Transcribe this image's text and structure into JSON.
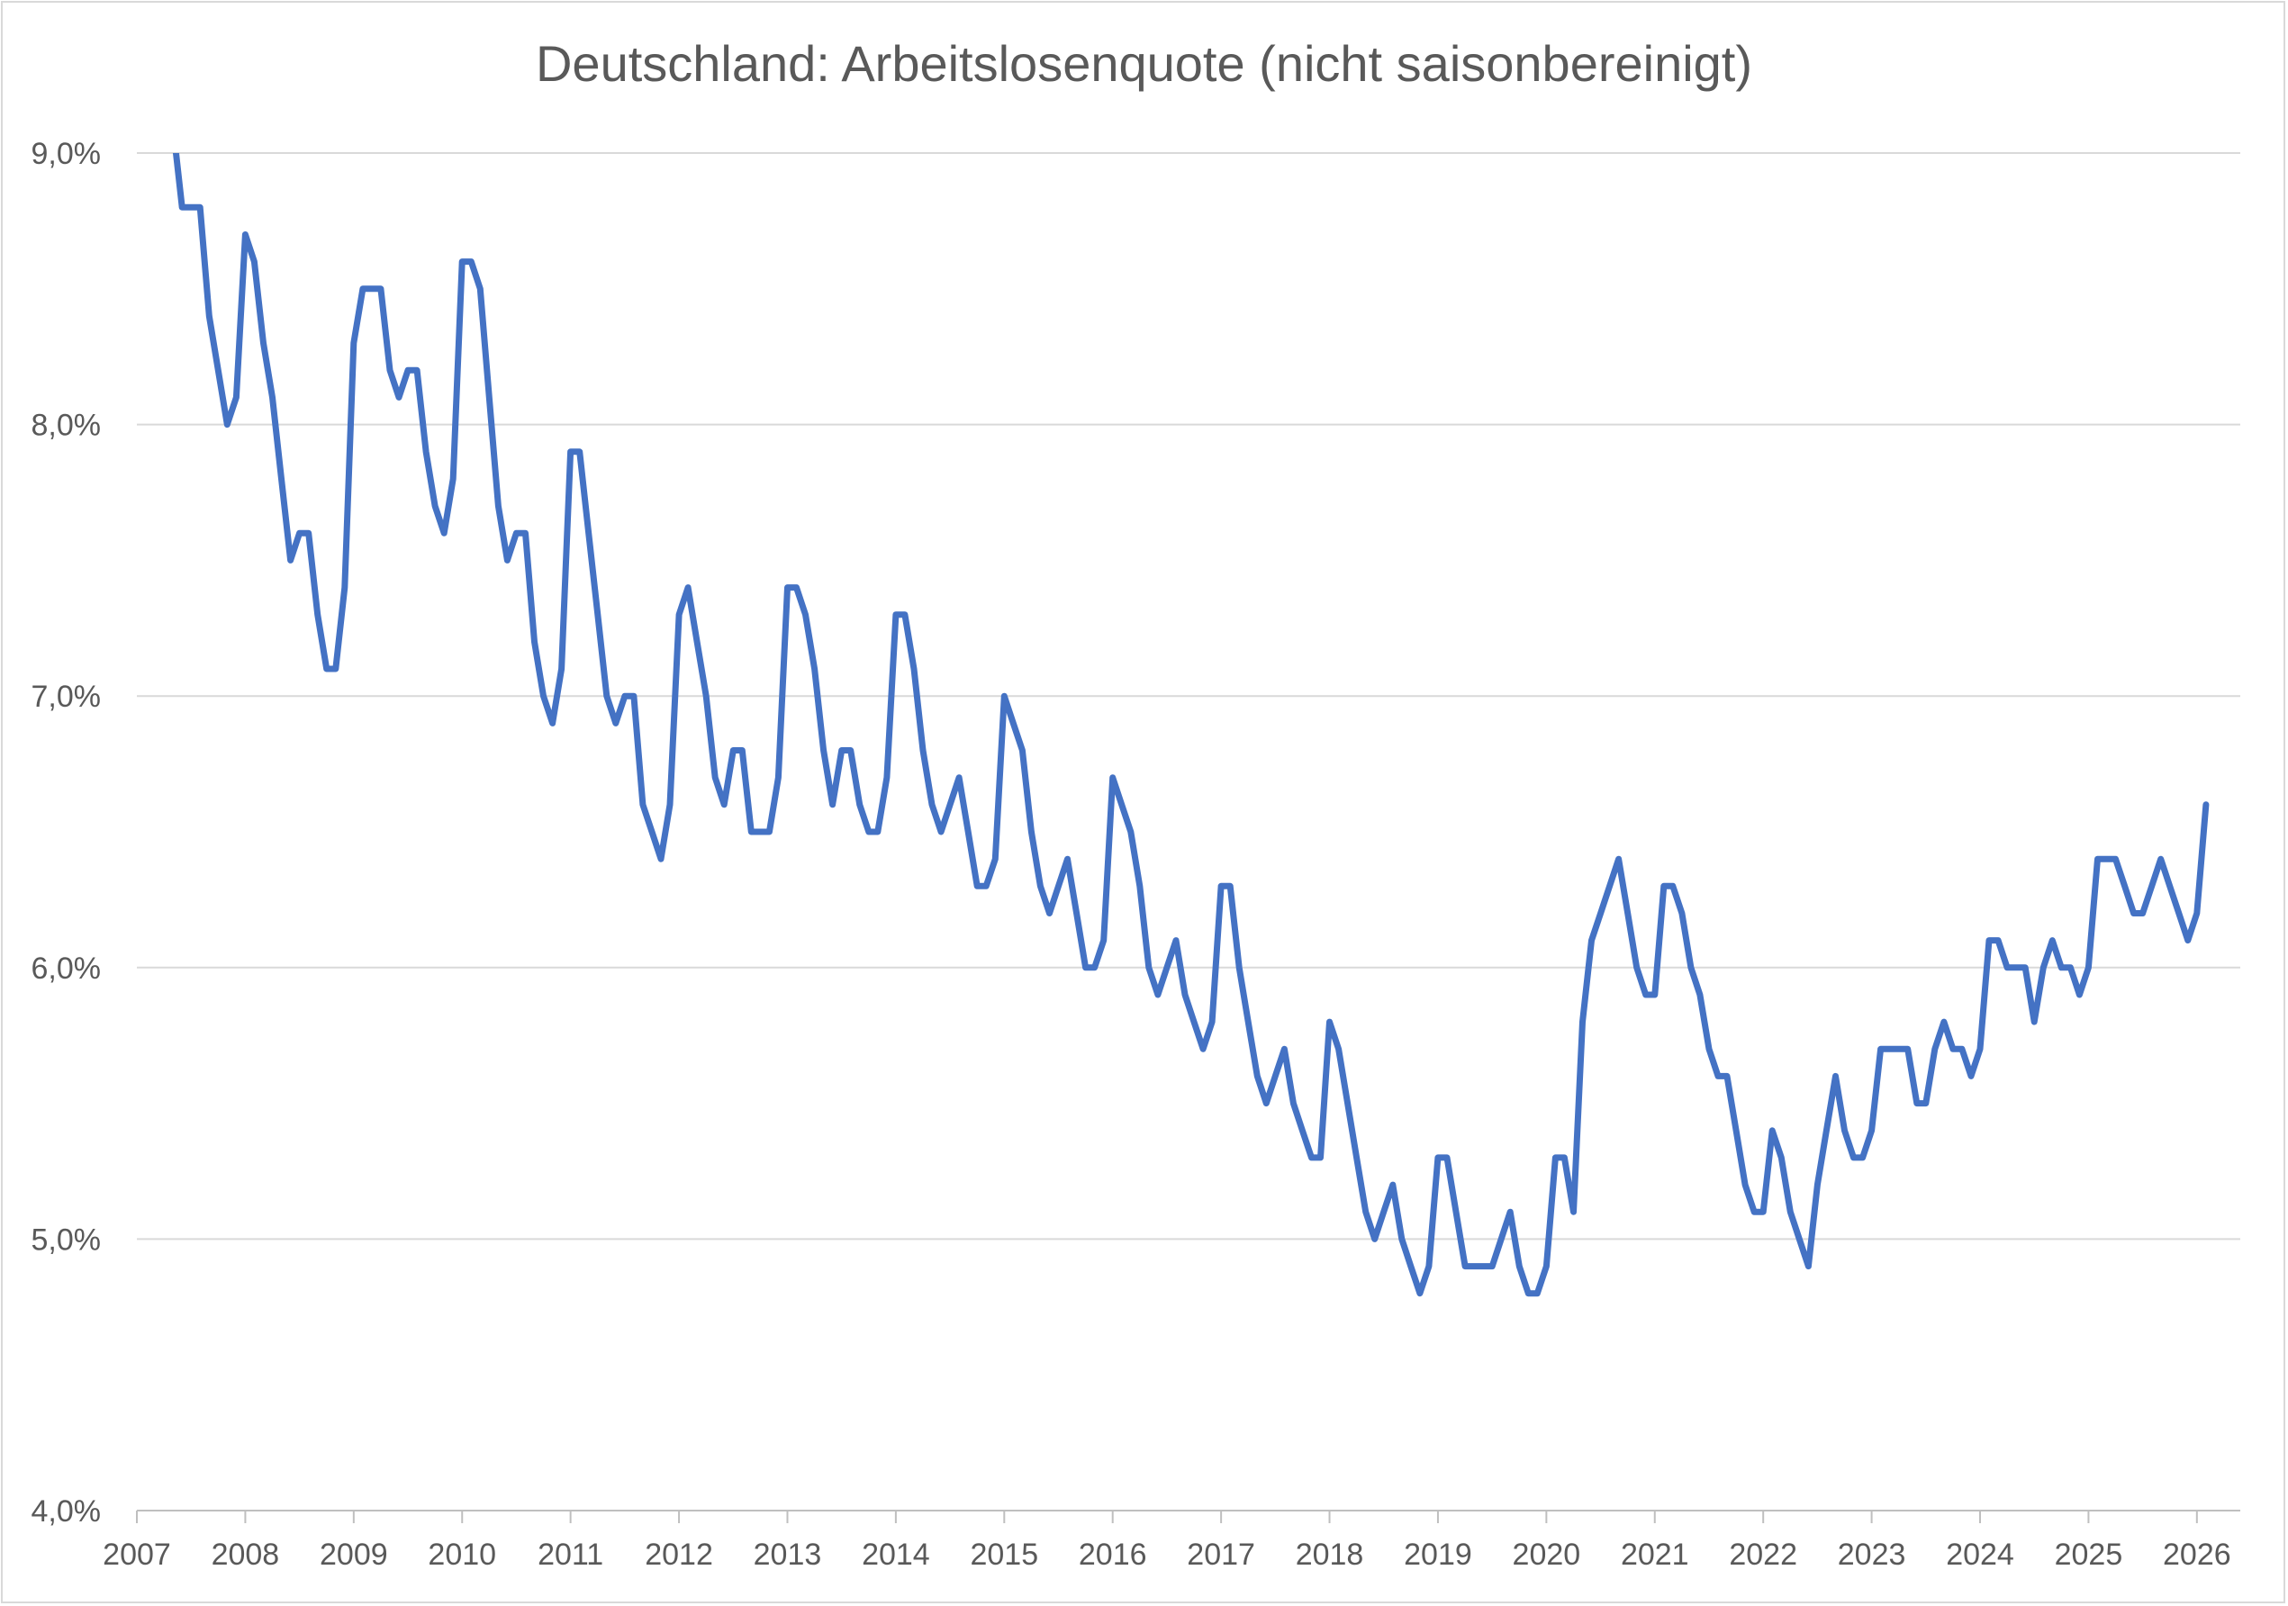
{
  "chart_data": {
    "type": "line",
    "title": "Deutschland: Arbeitslosenquote (nicht saisonbereinigt)",
    "xlabel": "",
    "ylabel": "",
    "ylim": [
      4.0,
      9.0
    ],
    "xlim": [
      2007.0,
      2026.4
    ],
    "grid": true,
    "legend": "none",
    "y_ticks": [
      {
        "value": 4.0,
        "label": "4,0%"
      },
      {
        "value": 5.0,
        "label": "5,0%"
      },
      {
        "value": 6.0,
        "label": "6,0%"
      },
      {
        "value": 7.0,
        "label": "7,0%"
      },
      {
        "value": 8.0,
        "label": "8,0%"
      },
      {
        "value": 9.0,
        "label": "9,0%"
      }
    ],
    "x_ticks": [
      {
        "value": 2007,
        "label": "2007"
      },
      {
        "value": 2008,
        "label": "2008"
      },
      {
        "value": 2009,
        "label": "2009"
      },
      {
        "value": 2010,
        "label": "2010"
      },
      {
        "value": 2011,
        "label": "2011"
      },
      {
        "value": 2012,
        "label": "2012"
      },
      {
        "value": 2013,
        "label": "2013"
      },
      {
        "value": 2014,
        "label": "2014"
      },
      {
        "value": 2015,
        "label": "2015"
      },
      {
        "value": 2016,
        "label": "2016"
      },
      {
        "value": 2017,
        "label": "2017"
      },
      {
        "value": 2018,
        "label": "2018"
      },
      {
        "value": 2019,
        "label": "2019"
      },
      {
        "value": 2020,
        "label": "2020"
      },
      {
        "value": 2021,
        "label": "2021"
      },
      {
        "value": 2022,
        "label": "2022"
      },
      {
        "value": 2023,
        "label": "2023"
      },
      {
        "value": 2024,
        "label": "2024"
      },
      {
        "value": 2025,
        "label": "2025"
      },
      {
        "value": 2026,
        "label": "2026"
      }
    ],
    "colors": {
      "line": "#4472c4",
      "grid": "#d9d9d9",
      "axis": "#bfbfbf",
      "text": "#595959"
    },
    "series": [
      {
        "start_year": 2007,
        "start_month": 5,
        "values": [
          9.1,
          8.8,
          8.8,
          8.8,
          8.4,
          8.2,
          8.0,
          8.1,
          8.7,
          8.6,
          8.3,
          8.1,
          7.8,
          7.5,
          7.6,
          7.6,
          7.3,
          7.1,
          7.1,
          7.4,
          8.3,
          8.5,
          8.5,
          8.5,
          8.2,
          8.1,
          8.2,
          8.2,
          7.9,
          7.7,
          7.6,
          7.8,
          8.6,
          8.6,
          8.5,
          8.1,
          7.7,
          7.5,
          7.6,
          7.6,
          7.2,
          7.0,
          6.9,
          7.1,
          7.9,
          7.9,
          7.6,
          7.3,
          7.0,
          6.9,
          7.0,
          7.0,
          6.6,
          6.5,
          6.4,
          6.6,
          7.3,
          7.4,
          7.2,
          7.0,
          6.7,
          6.6,
          6.8,
          6.8,
          6.5,
          6.5,
          6.5,
          6.7,
          7.4,
          7.4,
          7.3,
          7.1,
          6.8,
          6.6,
          6.8,
          6.8,
          6.6,
          6.5,
          6.5,
          6.7,
          7.3,
          7.3,
          7.1,
          6.8,
          6.6,
          6.5,
          6.6,
          6.7,
          6.5,
          6.3,
          6.3,
          6.4,
          7.0,
          6.9,
          6.8,
          6.5,
          6.3,
          6.2,
          6.3,
          6.4,
          6.2,
          6.0,
          6.0,
          6.1,
          6.7,
          6.6,
          6.5,
          6.3,
          6.0,
          5.9,
          6.0,
          6.1,
          5.9,
          5.8,
          5.7,
          5.8,
          6.3,
          6.3,
          6.0,
          5.8,
          5.6,
          5.5,
          5.6,
          5.7,
          5.5,
          5.4,
          5.3,
          5.3,
          5.8,
          5.7,
          5.5,
          5.3,
          5.1,
          5.0,
          5.1,
          5.2,
          5.0,
          4.9,
          4.8,
          4.9,
          5.3,
          5.3,
          5.1,
          4.9,
          4.9,
          4.9,
          4.9,
          5.0,
          5.1,
          4.9,
          4.8,
          4.8,
          4.9,
          5.3,
          5.3,
          5.1,
          5.8,
          6.1,
          6.2,
          6.3,
          6.4,
          6.2,
          6.0,
          5.9,
          5.9,
          6.3,
          6.3,
          6.2,
          6.0,
          5.9,
          5.7,
          5.6,
          5.6,
          5.4,
          5.2,
          5.1,
          5.1,
          5.4,
          5.3,
          5.1,
          5.0,
          4.9,
          5.2,
          5.4,
          5.6,
          5.4,
          5.3,
          5.3,
          5.4,
          5.7,
          5.7,
          5.7,
          5.7,
          5.5,
          5.5,
          5.7,
          5.8,
          5.7,
          5.7,
          5.6,
          5.7,
          6.1,
          6.1,
          6.0,
          6.0,
          6.0,
          5.8,
          6.0,
          6.1,
          6.0,
          6.0,
          5.9,
          6.0,
          6.4,
          6.4,
          6.4,
          6.3,
          6.2,
          6.2,
          6.3,
          6.4,
          6.3,
          6.2,
          6.1,
          6.2,
          6.6
        ]
      }
    ]
  }
}
